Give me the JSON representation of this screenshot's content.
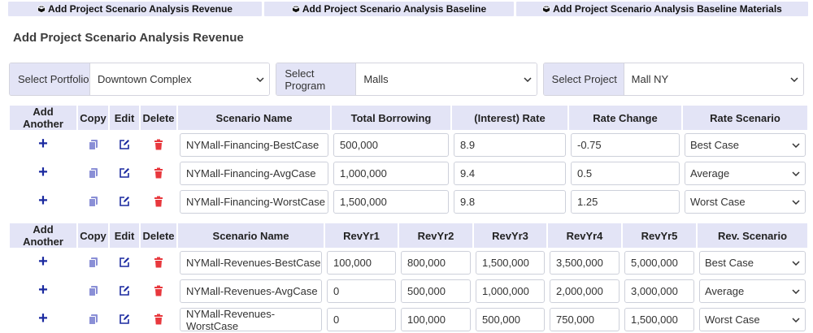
{
  "tabs": [
    {
      "label": "Add Project Scenario Analysis Revenue"
    },
    {
      "label": "Add Project Scenario Analysis Baseline"
    },
    {
      "label": "Add Project Scenario Analysis Baseline Materials"
    }
  ],
  "page_title": "Add Project Scenario Analysis Revenue",
  "selectors": {
    "portfolio": {
      "label": "Select Portfolio",
      "value": "Downtown Complex"
    },
    "program": {
      "label": "Select Program",
      "value": "Malls"
    },
    "project": {
      "label": "Select Project",
      "value": "Mall NY"
    }
  },
  "financing_table": {
    "headers": [
      "Add Another",
      "Copy",
      "Edit",
      "Delete",
      "Scenario Name",
      "Total Borrowing",
      "(Interest) Rate",
      "Rate Change",
      "Rate Scenario"
    ],
    "rows": [
      {
        "scenario": "NYMall-Financing-BestCase",
        "borrowing": "500,000",
        "rate": "8.9",
        "change": "-0.75",
        "rate_scenario": "Best Case"
      },
      {
        "scenario": "NYMall-Financing-AvgCase",
        "borrowing": "1,000,000",
        "rate": "9.4",
        "change": "0.5",
        "rate_scenario": "Average"
      },
      {
        "scenario": "NYMall-Financing-WorstCase",
        "borrowing": "1,500,000",
        "rate": "9.8",
        "change": "1.25",
        "rate_scenario": "Worst Case"
      }
    ]
  },
  "revenue_table": {
    "headers": [
      "Add Another",
      "Copy",
      "Edit",
      "Delete",
      "Scenario Name",
      "RevYr1",
      "RevYr2",
      "RevYr3",
      "RevYr4",
      "RevYr5",
      "Rev. Scenario"
    ],
    "rows": [
      {
        "scenario": "NYMall-Revenues-BestCase",
        "y1": "100,000",
        "y2": "800,000",
        "y3": "1,500,000",
        "y4": "3,500,000",
        "y5": "5,000,000",
        "rev_scenario": "Best Case"
      },
      {
        "scenario": "NYMall-Revenues-AvgCase",
        "y1": "0",
        "y2": "500,000",
        "y3": "1,000,000",
        "y4": "2,000,000",
        "y5": "3,000,000",
        "rev_scenario": "Average"
      },
      {
        "scenario": "NYMall-Revenues-WorstCase",
        "y1": "0",
        "y2": "100,000",
        "y3": "500,000",
        "y4": "750,000",
        "y5": "1,500,000",
        "rev_scenario": "Worst Case"
      }
    ]
  },
  "colors": {
    "header_bg": "#e3e4f6",
    "plus": "#1b2aa0",
    "copy": "#8a8fd6",
    "edit": "#1b2aa0",
    "delete": "#e8383d"
  },
  "icons": {
    "add": "plus-icon",
    "copy": "copy-icon",
    "edit": "edit-icon",
    "delete": "trash-icon",
    "tab": "cube-icon"
  }
}
